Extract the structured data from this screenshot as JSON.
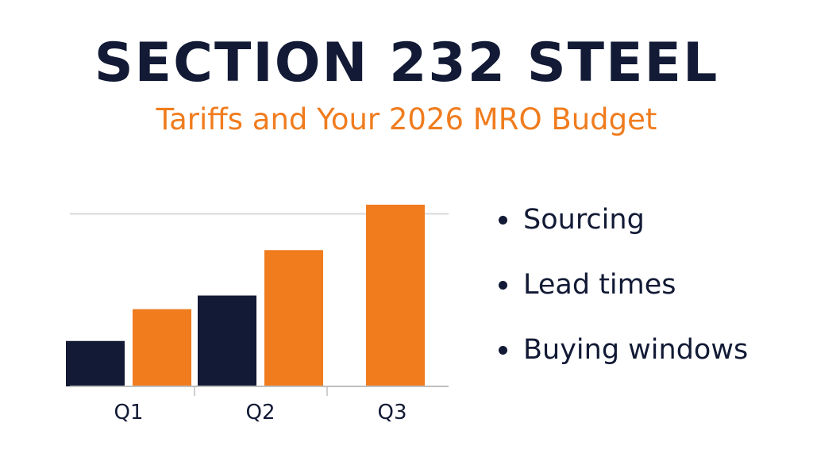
{
  "title": "SECTION 232 STEEL",
  "subtitle": "Tariffs and Your 2026 MRO Budget",
  "bullets": [
    {
      "label": "Sourcing"
    },
    {
      "label": "Lead times"
    },
    {
      "label": "Buying windows"
    }
  ],
  "colors": {
    "navy": "#121a35",
    "orange": "#f07c1e",
    "gridline": "#d9d9d9",
    "axis": "#bfbfbf"
  },
  "chart_data": {
    "type": "bar",
    "categories": [
      "Q1",
      "Q2",
      "Q3"
    ],
    "series": [
      {
        "color": "#121a35",
        "values": [
          1.0,
          2.0,
          null
        ]
      },
      {
        "color": "#f07c1e",
        "values": [
          1.7,
          3.0,
          4.0
        ]
      }
    ],
    "ylim": [
      0,
      4.0
    ],
    "reference_line": 3.8,
    "grid": false,
    "legend": "none",
    "xlabel": "",
    "ylabel": ""
  }
}
